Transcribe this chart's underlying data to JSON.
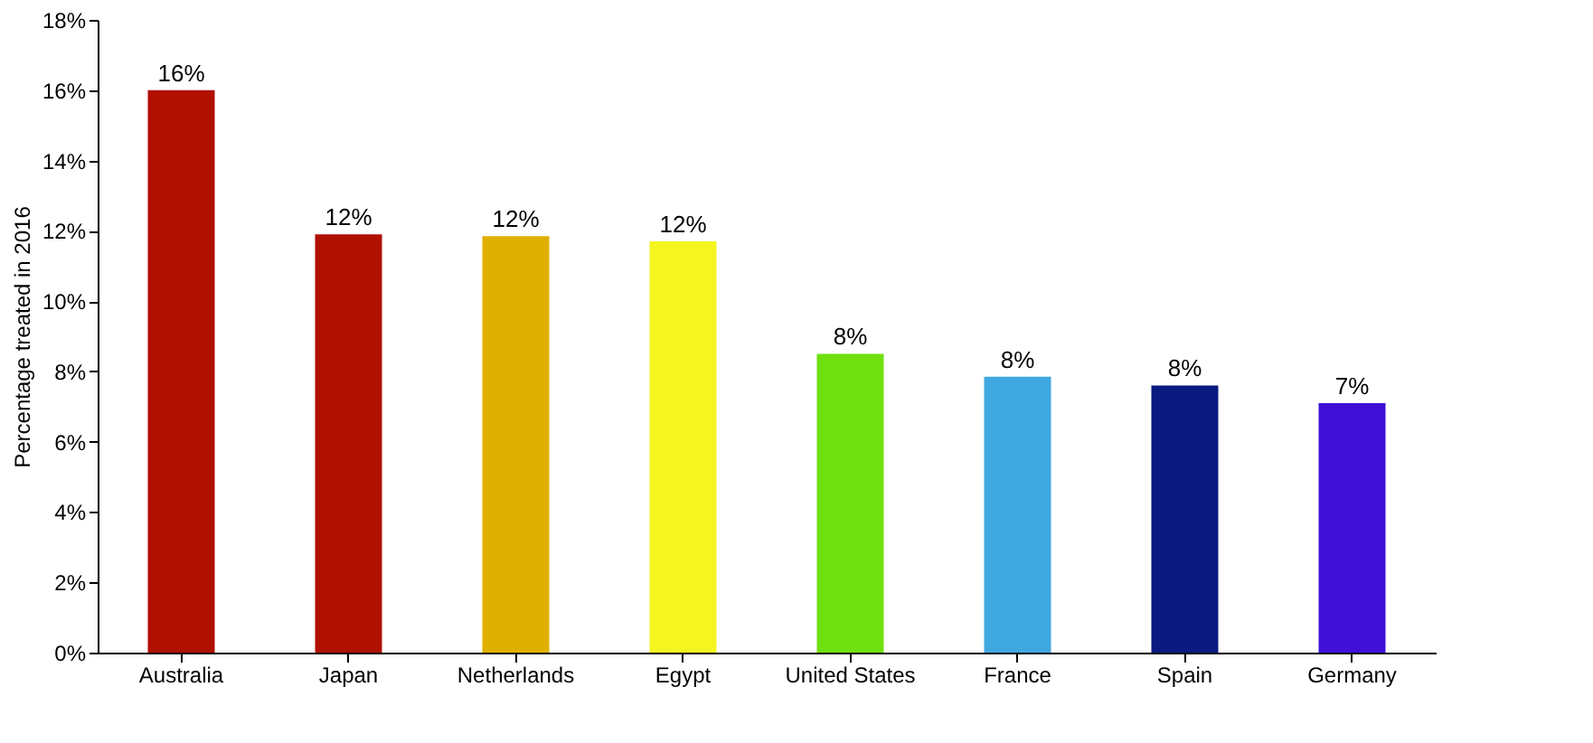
{
  "chart_data": {
    "type": "bar",
    "ylabel": "Percentage treated in 2016",
    "categories": [
      "Australia",
      "Japan",
      "Netherlands",
      "Egypt",
      "United States",
      "France",
      "Spain",
      "Germany"
    ],
    "values": [
      16.0,
      11.9,
      11.85,
      11.7,
      8.5,
      7.85,
      7.6,
      7.1
    ],
    "value_labels": [
      "16%",
      "12%",
      "12%",
      "12%",
      "8%",
      "8%",
      "8%",
      "7%"
    ],
    "colors": [
      "#b01000",
      "#b01000",
      "#e0b000",
      "#f5f520",
      "#70e010",
      "#40a8e0",
      "#0a1a80",
      "#4010d8"
    ],
    "ylim": [
      0,
      18
    ],
    "yticks": [
      {
        "value": 0,
        "label": "0%"
      },
      {
        "value": 2,
        "label": "2%"
      },
      {
        "value": 4,
        "label": "4%"
      },
      {
        "value": 6,
        "label": "6%"
      },
      {
        "value": 8,
        "label": "8%"
      },
      {
        "value": 10,
        "label": "10%"
      },
      {
        "value": 12,
        "label": "12%"
      },
      {
        "value": 14,
        "label": "14%"
      },
      {
        "value": 16,
        "label": "16%"
      },
      {
        "value": 18,
        "label": "18%"
      }
    ],
    "grid": false
  }
}
